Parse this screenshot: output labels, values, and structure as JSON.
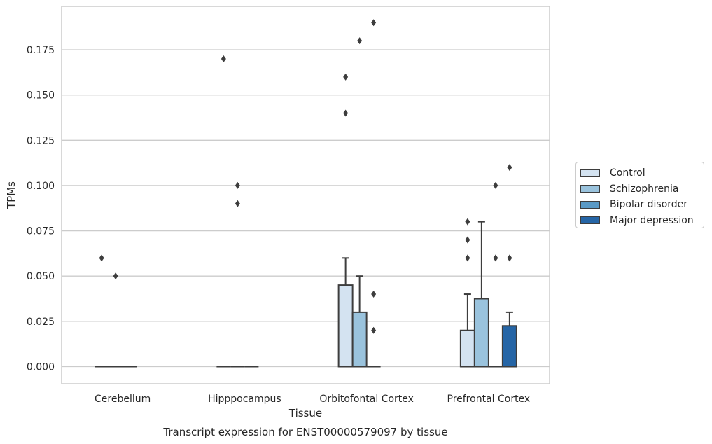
{
  "chart_data": {
    "type": "box",
    "title": "Transcript expression for ENST00000579097 by tissue",
    "xlabel": "Tissue",
    "ylabel": "TPMs",
    "ylim": [
      -0.0095,
      0.199
    ],
    "yticks": [
      "0.000",
      "0.025",
      "0.050",
      "0.075",
      "0.100",
      "0.125",
      "0.150",
      "0.175"
    ],
    "ytick_values": [
      0,
      0.025,
      0.05,
      0.075,
      0.1,
      0.125,
      0.15,
      0.175
    ],
    "categories": [
      "Cerebellum",
      "Hipppocampus",
      "Orbitofontal Cortex",
      "Prefrontal Cortex"
    ],
    "grid": "horizontal",
    "legend_position": "right",
    "series": [
      {
        "name": "Control",
        "color": "#d4e3f1",
        "boxes": [
          {
            "q1": 0,
            "median": 0,
            "q3": 0,
            "whisker_low": 0,
            "whisker_high": 0,
            "outliers": [
              0.06
            ]
          },
          {
            "q1": 0,
            "median": 0,
            "q3": 0,
            "whisker_low": 0,
            "whisker_high": 0,
            "outliers": [
              0.17
            ]
          },
          {
            "q1": 0,
            "median": 0,
            "q3": 0.045,
            "whisker_low": 0,
            "whisker_high": 0.06,
            "outliers": [
              0.14,
              0.16
            ]
          },
          {
            "q1": 0,
            "median": 0,
            "q3": 0.02,
            "whisker_low": 0,
            "whisker_high": 0.04,
            "outliers": [
              0.06,
              0.07,
              0.08
            ]
          }
        ]
      },
      {
        "name": "Schizophrenia",
        "color": "#9ac3dd",
        "boxes": [
          {
            "q1": 0,
            "median": 0,
            "q3": 0,
            "whisker_low": 0,
            "whisker_high": 0,
            "outliers": [
              0.05
            ]
          },
          {
            "q1": 0,
            "median": 0,
            "q3": 0,
            "whisker_low": 0,
            "whisker_high": 0,
            "outliers": [
              0.09,
              0.1
            ]
          },
          {
            "q1": 0,
            "median": 0,
            "q3": 0.03,
            "whisker_low": 0,
            "whisker_high": 0.05,
            "outliers": [
              0.18
            ]
          },
          {
            "q1": 0,
            "median": 0,
            "q3": 0.0375,
            "whisker_low": 0,
            "whisker_high": 0.08,
            "outliers": []
          }
        ]
      },
      {
        "name": "Bipolar disorder",
        "color": "#5a9ac6",
        "boxes": [
          {
            "q1": 0,
            "median": 0,
            "q3": 0,
            "whisker_low": 0,
            "whisker_high": 0,
            "outliers": []
          },
          {
            "q1": 0,
            "median": 0,
            "q3": 0,
            "whisker_low": 0,
            "whisker_high": 0,
            "outliers": []
          },
          {
            "q1": 0,
            "median": 0,
            "q3": 0,
            "whisker_low": 0,
            "whisker_high": 0,
            "outliers": [
              0.02,
              0.04,
              0.19
            ]
          },
          {
            "q1": 0,
            "median": 0,
            "q3": 0,
            "whisker_low": 0,
            "whisker_high": 0,
            "outliers": [
              0.06,
              0.1
            ]
          }
        ]
      },
      {
        "name": "Major depression",
        "color": "#2565a6",
        "boxes": [
          null,
          null,
          null,
          {
            "q1": 0,
            "median": 0,
            "q3": 0.0225,
            "whisker_low": 0,
            "whisker_high": 0.03,
            "outliers": [
              0.06,
              0.11
            ]
          }
        ]
      }
    ]
  }
}
